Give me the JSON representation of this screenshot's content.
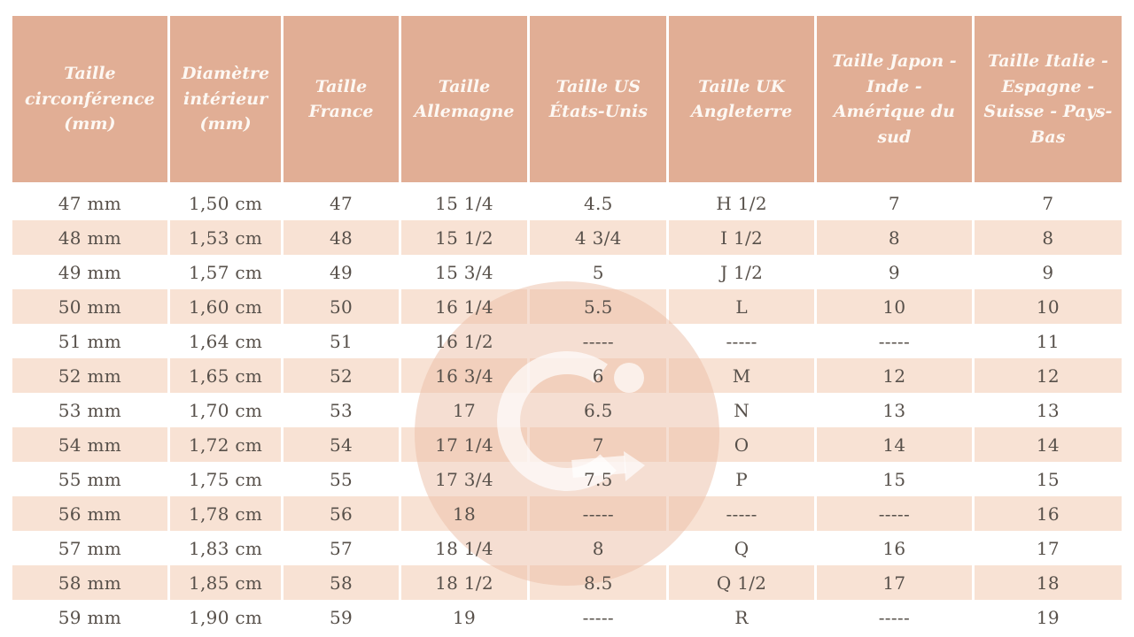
{
  "table": {
    "columns": [
      "Taille circonférence (mm)",
      "Diamètre intérieur (mm)",
      "Taille France",
      "Taille Allemagne",
      "Taille US États-Unis",
      "Taille UK Angleterre",
      "Taille Japon - Inde - Amérique du sud",
      "Taille Italie - Espagne - Suisse - Pays-Bas"
    ],
    "rows": [
      [
        "47 mm",
        "1,50 cm",
        "47",
        "15 1/4",
        "4.5",
        "H 1/2",
        "7",
        "7"
      ],
      [
        "48 mm",
        "1,53 cm",
        "48",
        "15 1/2",
        "4 3/4",
        "I 1/2",
        "8",
        "8"
      ],
      [
        "49 mm",
        "1,57 cm",
        "49",
        "15 3/4",
        "5",
        "J 1/2",
        "9",
        "9"
      ],
      [
        "50 mm",
        "1,60 cm",
        "50",
        "16 1/4",
        "5.5",
        "L",
        "10",
        "10"
      ],
      [
        "51 mm",
        "1,64 cm",
        "51",
        "16 1/2",
        "-----",
        "-----",
        "-----",
        "11"
      ],
      [
        "52 mm",
        "1,65 cm",
        "52",
        "16 3/4",
        "6",
        "M",
        "12",
        "12"
      ],
      [
        "53 mm",
        "1,70 cm",
        "53",
        "17",
        "6.5",
        "N",
        "13",
        "13"
      ],
      [
        "54 mm",
        "1,72 cm",
        "54",
        "17 1/4",
        "7",
        "O",
        "14",
        "14"
      ],
      [
        "55 mm",
        "1,75 cm",
        "55",
        "17 3/4",
        "7.5",
        "P",
        "15",
        "15"
      ],
      [
        "56 mm",
        "1,78 cm",
        "56",
        "18",
        "-----",
        "-----",
        "-----",
        "16"
      ],
      [
        "57 mm",
        "1,83 cm",
        "57",
        "18 1/4",
        "8",
        "Q",
        "16",
        "17"
      ],
      [
        "58 mm",
        "1,85 cm",
        "58",
        "18 1/2",
        "8.5",
        "Q 1/2",
        "17",
        "18"
      ],
      [
        "59 mm",
        "1,90 cm",
        "59",
        "19",
        "-----",
        "R",
        "-----",
        "19"
      ]
    ]
  },
  "watermark": {
    "icon": "g-ring-logo"
  },
  "colors": {
    "header_bg": "#e1ae95",
    "header_text": "#fdf8f3",
    "stripe_bg": "#f8e2d4",
    "text": "#57504a"
  }
}
